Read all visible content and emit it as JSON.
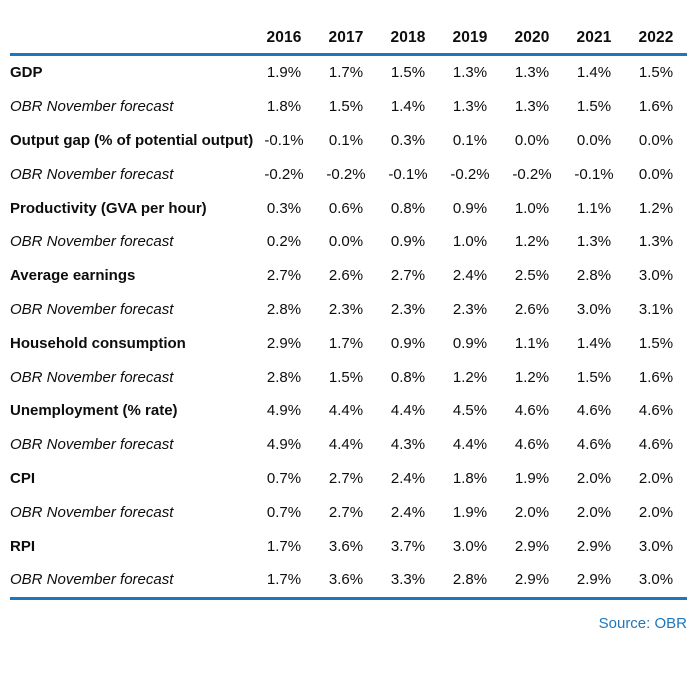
{
  "chart_data": {
    "type": "table",
    "columns": [
      "2016",
      "2017",
      "2018",
      "2019",
      "2020",
      "2021",
      "2022"
    ],
    "rows": [
      {
        "label": "GDP",
        "style": "metric",
        "values": [
          "1.9%",
          "1.7%",
          "1.5%",
          "1.3%",
          "1.3%",
          "1.4%",
          "1.5%"
        ]
      },
      {
        "label": "OBR November forecast",
        "style": "forecast",
        "values": [
          "1.8%",
          "1.5%",
          "1.4%",
          "1.3%",
          "1.3%",
          "1.5%",
          "1.6%"
        ]
      },
      {
        "label": "Output gap (% of potential output)",
        "style": "metric",
        "values": [
          "-0.1%",
          "0.1%",
          "0.3%",
          "0.1%",
          "0.0%",
          "0.0%",
          "0.0%"
        ]
      },
      {
        "label": "OBR November forecast",
        "style": "forecast",
        "values": [
          "-0.2%",
          "-0.2%",
          "-0.1%",
          "-0.2%",
          "-0.2%",
          "-0.1%",
          "0.0%"
        ]
      },
      {
        "label": "Productivity (GVA per hour)",
        "style": "metric",
        "values": [
          "0.3%",
          "0.6%",
          "0.8%",
          "0.9%",
          "1.0%",
          "1.1%",
          "1.2%"
        ]
      },
      {
        "label": "OBR November forecast",
        "style": "forecast",
        "values": [
          "0.2%",
          "0.0%",
          "0.9%",
          "1.0%",
          "1.2%",
          "1.3%",
          "1.3%"
        ]
      },
      {
        "label": "Average earnings",
        "style": "metric",
        "values": [
          "2.7%",
          "2.6%",
          "2.7%",
          "2.4%",
          "2.5%",
          "2.8%",
          "3.0%"
        ]
      },
      {
        "label": "OBR November forecast",
        "style": "forecast",
        "values": [
          "2.8%",
          "2.3%",
          "2.3%",
          "2.3%",
          "2.6%",
          "3.0%",
          "3.1%"
        ]
      },
      {
        "label": "Household consumption",
        "style": "metric",
        "values": [
          "2.9%",
          "1.7%",
          "0.9%",
          "0.9%",
          "1.1%",
          "1.4%",
          "1.5%"
        ]
      },
      {
        "label": "OBR November forecast",
        "style": "forecast",
        "values": [
          "2.8%",
          "1.5%",
          "0.8%",
          "1.2%",
          "1.2%",
          "1.5%",
          "1.6%"
        ]
      },
      {
        "label": "Unemployment (% rate)",
        "style": "metric",
        "values": [
          "4.9%",
          "4.4%",
          "4.4%",
          "4.5%",
          "4.6%",
          "4.6%",
          "4.6%"
        ]
      },
      {
        "label": "OBR November forecast",
        "style": "forecast",
        "values": [
          "4.9%",
          "4.4%",
          "4.3%",
          "4.4%",
          "4.6%",
          "4.6%",
          "4.6%"
        ]
      },
      {
        "label": "CPI",
        "style": "metric",
        "values": [
          "0.7%",
          "2.7%",
          "2.4%",
          "1.8%",
          "1.9%",
          "2.0%",
          "2.0%"
        ]
      },
      {
        "label": "OBR November forecast",
        "style": "forecast",
        "values": [
          "0.7%",
          "2.7%",
          "2.4%",
          "1.9%",
          "2.0%",
          "2.0%",
          "2.0%"
        ]
      },
      {
        "label": "RPI",
        "style": "metric",
        "values": [
          "1.7%",
          "3.6%",
          "3.7%",
          "3.0%",
          "2.9%",
          "2.9%",
          "3.0%"
        ]
      },
      {
        "label": "OBR November forecast",
        "style": "forecast",
        "values": [
          "1.7%",
          "3.6%",
          "3.3%",
          "2.8%",
          "2.9%",
          "2.9%",
          "3.0%"
        ]
      }
    ],
    "source": "Source: OBR",
    "title": "",
    "legend_position": "none",
    "grid": false
  },
  "colors": {
    "accent": "#1F76BC",
    "text": "#0d0d0d"
  }
}
